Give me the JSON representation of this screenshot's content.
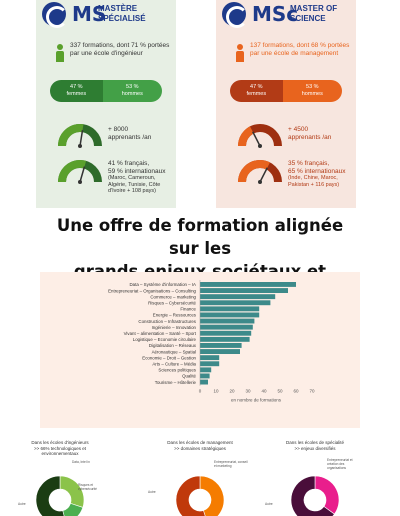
{
  "ms": {
    "logo_abbr": "MS",
    "logo_text": "Mastère spécialisé",
    "formations": "337 formations, dont 71 % portées par une école d'ingénieur",
    "women": "47 %",
    "women_label": "femmes",
    "men": "53 %",
    "men_label": "hommes",
    "women_share": 0.47,
    "learners_value": "+ 8000",
    "learners_label": "apprenants /an",
    "learners_gauge": 0.55,
    "intl_line1": "41 % français,",
    "intl_line2": "59 % internationaux",
    "intl_detail": "(Maroc, Cameroun, Algérie, Tunisie, Côte d'Ivoire + 108 pays)",
    "intl_gauge": 0.59,
    "accent": "#5aa02c",
    "dark": "#2e6b2a"
  },
  "msc": {
    "logo_abbr": "MSc",
    "logo_text": "Master of Science",
    "formations": "137 formations, dont 68 % portées par une école de management",
    "women": "47 %",
    "women_label": "femmes",
    "men": "53 %",
    "men_label": "hommes",
    "women_share": 0.47,
    "learners_value": "+ 4500",
    "learners_label": "apprenants /an",
    "learners_gauge": 0.35,
    "intl_line1": "35 % français,",
    "intl_line2": "65 % internationaux",
    "intl_detail": "(Inde, Chine, Maroc, Pakistan + 116 pays)",
    "intl_gauge": 0.65,
    "accent": "#e8641e",
    "dark": "#9e2f10"
  },
  "headline": {
    "line1": "Une offre de formation alignée sur les",
    "line2": "grands enjeux sociétaux et économiques"
  },
  "chart_data": {
    "type": "bar",
    "orientation": "horizontal",
    "categories": [
      "Data – Système d'information – IA",
      "Entrepreneuriat – Organisations – Consulting",
      "Commerce – marketing",
      "Risques – Cybersécurité",
      "Finance",
      "Energie – Ressources",
      "Construction – Infrastructures",
      "Ingénierie – Innovation",
      "Vivant – alimentation – Santé – Sport",
      "Logistique – Economie circulaire",
      "Digitalisation – Réseaux",
      "Aéronautique – Spatial",
      "Economie – Droit – Gestion",
      "Arts – Culture – Média",
      "Sciences politiques",
      "Qualité",
      "Tourisme – Hôtellerie"
    ],
    "values": [
      60,
      55,
      47,
      44,
      37,
      37,
      34,
      33,
      32,
      31,
      26,
      25,
      12,
      12,
      7,
      6,
      5
    ],
    "xlim": [
      0,
      70
    ],
    "xticks": [
      0,
      10,
      20,
      30,
      40,
      50,
      60,
      70
    ],
    "xlabel": "en nombre de formations",
    "bar_color": "#3d8a8a"
  },
  "donuts": [
    {
      "title_line1": "Dans les écoles d'ingénieurs",
      "title_line2": ">> 66% technologiques et",
      "title_line3": "environnementaux",
      "labels": [
        "Data, Intel in",
        "Risques et cybersécurité",
        "Autre"
      ],
      "values": [
        30,
        16,
        54
      ],
      "colors": [
        "#8bc34a",
        "#4caf50",
        "#1b3d13"
      ]
    },
    {
      "title_line1": "Dans les écoles de management",
      "title_line2": ">> domaines stratégiques",
      "title_line3": "",
      "labels": [
        "Entrepreneuriat, conseil et marketing",
        "Autre"
      ],
      "values": [
        45,
        55
      ],
      "colors": [
        "#f57c00",
        "#c0390b"
      ]
    },
    {
      "title_line1": "Dans les écoles de spécialité",
      "title_line2": ">> enjeux diversifiés",
      "title_line3": "",
      "labels": [
        "Entrepreneuriat et création des organisations",
        "Autre"
      ],
      "values": [
        35,
        65
      ],
      "colors": [
        "#e91e8c",
        "#4a0e3a"
      ]
    }
  ]
}
